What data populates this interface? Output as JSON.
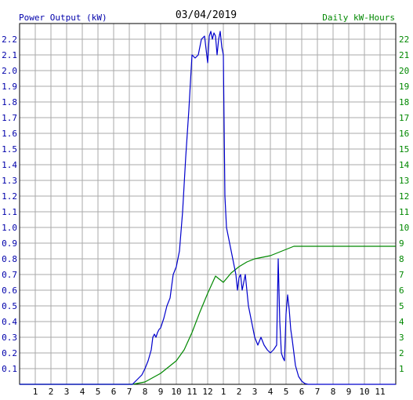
{
  "chart_data": {
    "type": "line",
    "title": "03/04/2019",
    "left_axis_label": "Power Output (kW)",
    "right_axis_label": "Daily kW-Hours",
    "x_tick_labels": [
      "1",
      "2",
      "3",
      "4",
      "5",
      "6",
      "7",
      "8",
      "9",
      "10",
      "11",
      "12",
      "1",
      "2",
      "3",
      "4",
      "5",
      "6",
      "7",
      "8",
      "9",
      "10",
      "11"
    ],
    "x_range_hours": [
      0,
      24
    ],
    "left_ylim": [
      0,
      2.3
    ],
    "left_ticks": [
      "0.1",
      "0.2",
      "0.3",
      "0.4",
      "0.5",
      "0.6",
      "0.7",
      "0.8",
      "0.9",
      "1.0",
      "1.1",
      "1.2",
      "1.3",
      "1.4",
      "1.5",
      "1.6",
      "1.7",
      "1.8",
      "1.9",
      "2.0",
      "2.1",
      "2.2"
    ],
    "right_ylim": [
      0,
      23
    ],
    "right_ticks": [
      "1",
      "2",
      "3",
      "4",
      "5",
      "6",
      "7",
      "8",
      "9",
      "10",
      "11",
      "12",
      "13",
      "14",
      "15",
      "16",
      "17",
      "18",
      "19",
      "20",
      "21",
      "22"
    ],
    "grid": true,
    "colors": {
      "power": "#0000cc",
      "energy": "#008800",
      "left_text": "#0000aa",
      "right_text": "#008800",
      "grid": "#aaaaaa",
      "frame": "#000000"
    },
    "series": [
      {
        "name": "Power Output (kW)",
        "axis": "left",
        "x": [
          0,
          7.2,
          7.5,
          7.8,
          8.0,
          8.2,
          8.4,
          8.5,
          8.6,
          8.7,
          8.8,
          8.9,
          9.0,
          9.2,
          9.4,
          9.6,
          9.8,
          10.0,
          10.2,
          10.4,
          10.6,
          10.8,
          11.0,
          11.2,
          11.4,
          11.5,
          11.6,
          11.8,
          12.0,
          12.1,
          12.2,
          12.3,
          12.4,
          12.5,
          12.6,
          12.7,
          12.8,
          12.9,
          13.0,
          13.1,
          13.2,
          13.3,
          13.4,
          13.5,
          13.6,
          13.7,
          13.8,
          13.9,
          14.0,
          14.1,
          14.2,
          14.4,
          14.6,
          14.8,
          15.0,
          15.2,
          15.4,
          15.6,
          15.8,
          16.0,
          16.2,
          16.4,
          16.5,
          16.6,
          16.7,
          16.8,
          16.9,
          17.0,
          17.1,
          17.2,
          17.3,
          17.4,
          17.6,
          17.8,
          18.0,
          18.2,
          18.4,
          24
        ],
        "y": [
          0,
          0,
          0.03,
          0.06,
          0.1,
          0.15,
          0.22,
          0.3,
          0.32,
          0.3,
          0.33,
          0.35,
          0.36,
          0.42,
          0.5,
          0.55,
          0.7,
          0.75,
          0.85,
          1.1,
          1.45,
          1.75,
          2.1,
          2.08,
          2.1,
          2.15,
          2.2,
          2.22,
          2.05,
          2.22,
          2.25,
          2.2,
          2.24,
          2.22,
          2.1,
          2.2,
          2.25,
          2.15,
          2.1,
          1.2,
          1.0,
          0.95,
          0.9,
          0.85,
          0.8,
          0.75,
          0.7,
          0.6,
          0.68,
          0.7,
          0.6,
          0.7,
          0.5,
          0.4,
          0.3,
          0.25,
          0.3,
          0.25,
          0.22,
          0.2,
          0.22,
          0.25,
          0.8,
          0.4,
          0.2,
          0.17,
          0.15,
          0.45,
          0.57,
          0.48,
          0.35,
          0.28,
          0.12,
          0.05,
          0.02,
          0.005,
          0,
          0
        ]
      },
      {
        "name": "Daily kW-Hours",
        "axis": "right",
        "x": [
          0,
          7.2,
          8.0,
          9.0,
          10.0,
          10.5,
          11.0,
          11.5,
          12.0,
          12.5,
          13.0,
          13.5,
          14.0,
          14.5,
          15.0,
          15.5,
          16.0,
          16.5,
          17.0,
          17.5,
          18.0,
          18.5,
          19.0,
          24
        ],
        "y": [
          0,
          0,
          0.15,
          0.7,
          1.5,
          2.2,
          3.3,
          4.6,
          5.8,
          6.9,
          6.5,
          7.1,
          7.5,
          7.8,
          8.0,
          8.1,
          8.2,
          8.4,
          8.6,
          8.8,
          8.8,
          8.8,
          8.8,
          8.8
        ]
      }
    ]
  }
}
